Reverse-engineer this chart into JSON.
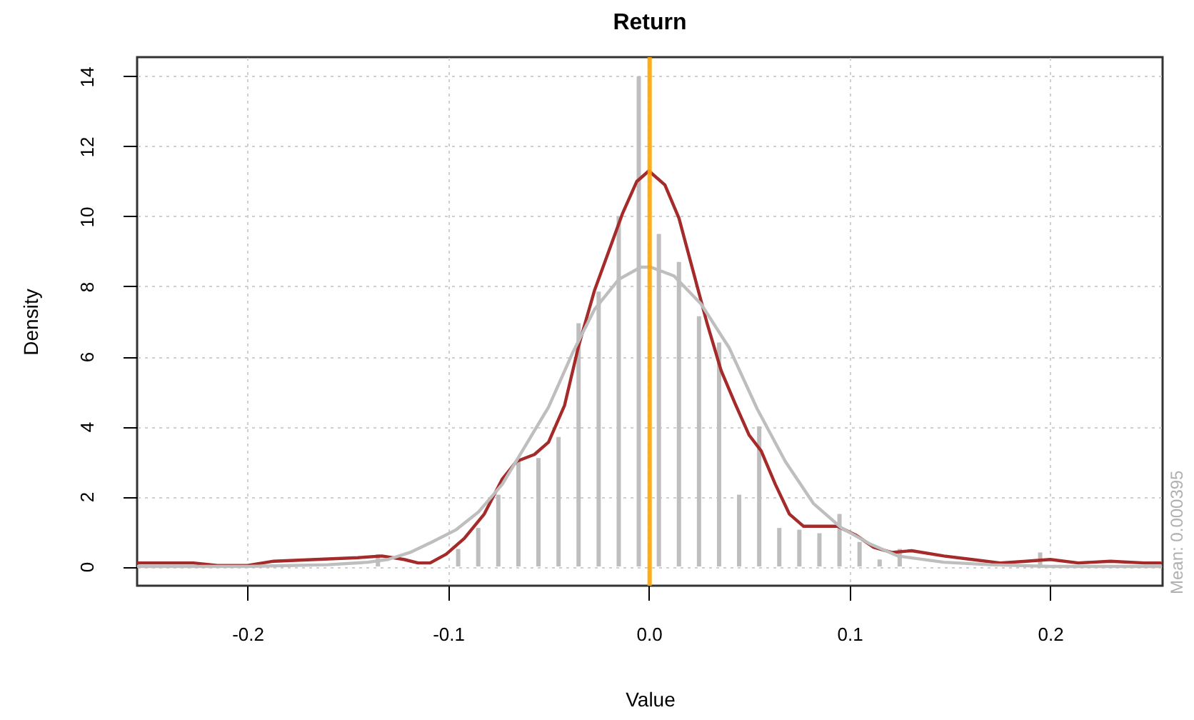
{
  "chart_data": {
    "type": "histogram",
    "title": "Return",
    "xlabel": "Value",
    "ylabel": "Density",
    "xlim": [
      -0.255,
      0.256
    ],
    "xticks": [
      -0.2,
      -0.1,
      {
        "value": 0,
        "label": "0.0"
      },
      0.1,
      0.2
    ],
    "ylim": [
      -0.55,
      14.55
    ],
    "yticks": [
      0,
      2,
      4,
      6,
      8,
      10,
      12,
      14
    ],
    "grid": true,
    "series": [
      {
        "type": "histogram",
        "color": "#bebebe",
        "bins": [
          -0.14,
          -0.13,
          -0.12,
          -0.11,
          -0.1,
          -0.09,
          -0.08,
          -0.07,
          -0.06,
          -0.05,
          -0.04,
          -0.03,
          -0.02,
          -0.01,
          0.0,
          0.01,
          0.02,
          0.03,
          0.04,
          0.05,
          0.06,
          0.07,
          0.08,
          0.09,
          0.1,
          0.11,
          0.12,
          0.13,
          0.14,
          0.15,
          0.16,
          0.17,
          0.18,
          0.19,
          0.2
        ],
        "values": [
          0.35,
          0,
          0,
          0,
          0.5,
          1.1,
          2.05,
          3.0,
          3.1,
          3.7,
          6.95,
          7.85,
          10.0,
          14.0,
          9.5,
          8.7,
          7.15,
          6.4,
          2.05,
          4.0,
          1.1,
          1.05,
          0.95,
          1.5,
          0.7,
          0.2,
          0.5,
          0,
          0,
          0,
          0,
          0,
          0,
          0.4
        ]
      },
      {
        "type": "line",
        "color": "#a52a2a",
        "x": [
          -0.255,
          -0.227,
          -0.215,
          -0.2,
          -0.187,
          -0.166,
          -0.145,
          -0.133,
          -0.122,
          -0.115,
          -0.109,
          -0.101,
          -0.092,
          -0.082,
          -0.073,
          -0.066,
          -0.057,
          -0.05,
          -0.042,
          -0.035,
          -0.027,
          -0.02,
          -0.013,
          -0.006,
          0.0,
          0.008,
          0.015,
          0.022,
          0.029,
          0.036,
          0.043,
          0.05,
          0.056,
          0.063,
          0.07,
          0.077,
          0.094,
          0.103,
          0.112,
          0.121,
          0.131,
          0.147,
          0.161,
          0.175,
          0.188,
          0.2,
          0.214,
          0.23,
          0.247,
          0.255
        ],
        "values": [
          0.1,
          0.1,
          0.03,
          0.03,
          0.15,
          0.2,
          0.25,
          0.3,
          0.2,
          0.1,
          0.1,
          0.35,
          0.8,
          1.5,
          2.5,
          3.0,
          3.2,
          3.55,
          4.6,
          6.3,
          7.9,
          9.0,
          10.1,
          11.0,
          11.3,
          10.9,
          9.95,
          8.45,
          6.95,
          5.6,
          4.65,
          3.75,
          3.3,
          2.35,
          1.5,
          1.15,
          1.15,
          0.9,
          0.55,
          0.4,
          0.45,
          0.3,
          0.2,
          0.1,
          0.15,
          0.2,
          0.1,
          0.15,
          0.1,
          0.1
        ]
      },
      {
        "type": "line",
        "color": "#bebebe",
        "x": [
          -0.255,
          -0.2,
          -0.16,
          -0.14,
          -0.13,
          -0.119,
          -0.108,
          -0.096,
          -0.085,
          -0.073,
          -0.062,
          -0.05,
          -0.038,
          -0.027,
          -0.015,
          -0.004,
          0.001,
          0.0125,
          0.026,
          0.04,
          0.054,
          0.068,
          0.082,
          0.096,
          0.11,
          0.124,
          0.147,
          0.17,
          0.2,
          0.255
        ],
        "values": [
          0,
          0,
          0.05,
          0.12,
          0.2,
          0.4,
          0.7,
          1.05,
          1.55,
          2.35,
          3.4,
          4.55,
          6.1,
          7.35,
          8.2,
          8.55,
          8.55,
          8.3,
          7.5,
          6.25,
          4.5,
          3.0,
          1.8,
          1.1,
          0.65,
          0.3,
          0.12,
          0.05,
          0,
          0
        ]
      }
    ],
    "ref_lines": [
      {
        "axis": "x",
        "value": 0.000395,
        "color": "#ffa500"
      }
    ],
    "annotations": [
      "Mean: 0.000395"
    ]
  }
}
